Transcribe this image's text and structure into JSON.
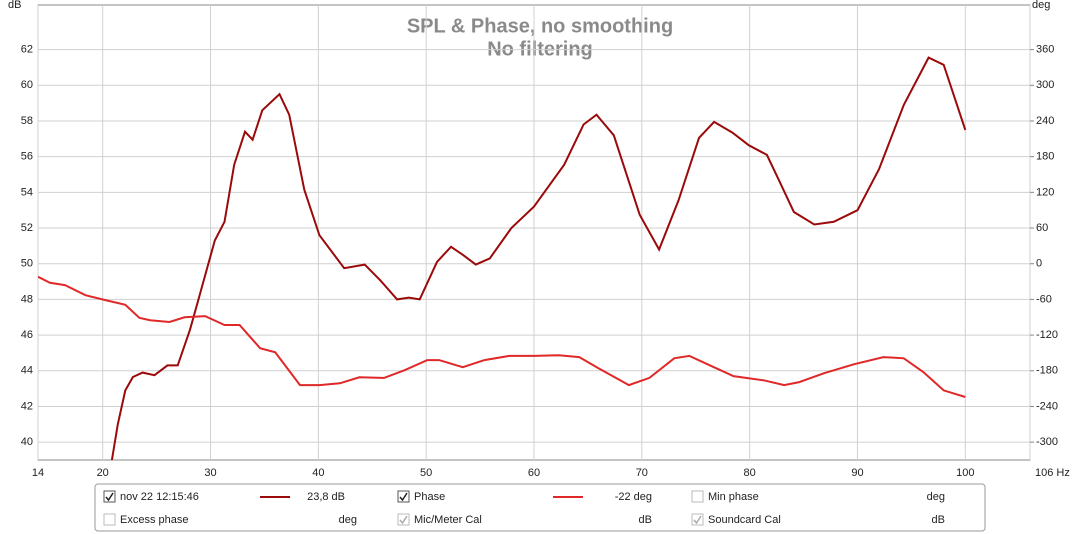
{
  "chart_data": {
    "type": "line",
    "title": "SPL & Phase, no smoothing",
    "subtitle": "No filtering",
    "y_label": "dB",
    "y2_label": "deg",
    "xlim": [
      14,
      106
    ],
    "xticks": [
      14,
      20,
      30,
      40,
      50,
      60,
      70,
      80,
      90,
      100,
      {
        "value": 106,
        "label": "106 Hz"
      }
    ],
    "ylim": [
      39,
      64.5
    ],
    "yticks": [
      40,
      42,
      44,
      46,
      48,
      50,
      52,
      54,
      56,
      58,
      60,
      62
    ],
    "y2lim": [
      -330,
      435
    ],
    "y2ticks": [
      -300,
      -240,
      -180,
      -120,
      -60,
      0,
      60,
      120,
      180,
      240,
      300,
      360
    ],
    "grid": true,
    "series": [
      {
        "name": "nov 22 12:15:46",
        "color": "#9b0a0a",
        "axis": "y",
        "readout": "23,8 dB",
        "checked": true,
        "x": [
          20.85,
          21.4,
          22.1,
          22.8,
          23.7,
          24.8,
          26.0,
          26.96,
          28.1,
          29.0,
          30.4,
          31.3,
          32.2,
          33.2,
          33.9,
          34.8,
          36.4,
          37.3,
          38.7,
          40.1,
          42.4,
          44.3,
          45.7,
          47.3,
          48.4,
          49.4,
          51.0,
          52.3,
          53.4,
          54.6,
          55.9,
          57.9,
          60.0,
          62.8,
          64.6,
          65.8,
          67.4,
          69.8,
          71.6,
          73.4,
          75.3,
          76.7,
          78.4,
          79.9,
          81.6,
          82.7,
          84.1,
          86.0,
          87.8,
          90.0,
          92.0,
          94.3,
          96.6,
          98.0,
          100.0
        ],
        "values": [
          39.0,
          41.0,
          42.9,
          43.65,
          43.9,
          43.75,
          44.3,
          44.3,
          46.3,
          48.25,
          51.3,
          52.35,
          55.55,
          57.4,
          56.95,
          58.6,
          59.5,
          58.35,
          54.15,
          51.6,
          49.75,
          49.95,
          49.1,
          48.0,
          48.1,
          48.0,
          50.1,
          50.95,
          50.5,
          49.95,
          50.3,
          52.0,
          53.2,
          55.55,
          57.8,
          58.35,
          57.2,
          52.75,
          50.8,
          53.55,
          57.05,
          57.95,
          57.35,
          56.65,
          56.1,
          54.7,
          52.9,
          52.2,
          52.35,
          53.0,
          55.3,
          58.9,
          61.55,
          61.15,
          57.5
        ]
      },
      {
        "name": "Phase",
        "color": "#e02828",
        "axis": "y2",
        "readout": "-22 deg",
        "checked": true,
        "x": [
          14,
          15.1,
          16.5,
          18.4,
          20.2,
          22.1,
          23.4,
          24.4,
          26.2,
          27.6,
          29.5,
          31.3,
          32.7,
          34.6,
          36.0,
          38.3,
          40.1,
          42.0,
          43.8,
          46.1,
          48.0,
          50.1,
          51.2,
          53.4,
          55.4,
          57.7,
          60.0,
          62.3,
          64.2,
          66.0,
          68.8,
          70.7,
          73.0,
          74.4,
          76.2,
          78.5,
          81.3,
          83.2,
          84.6,
          86.9,
          89.7,
          92.4,
          94.3,
          96.1,
          98.0,
          100
        ],
        "values": [
          -22,
          -32,
          -36,
          -53,
          -61,
          -69,
          -91,
          -95,
          -98,
          -90,
          -88,
          -103,
          -103,
          -142,
          -149,
          -204,
          -204,
          -201,
          -191,
          -192,
          -179,
          -162,
          -162,
          -174,
          -162,
          -155,
          -155,
          -154,
          -157,
          -176,
          -204,
          -192,
          -159,
          -155,
          -170,
          -189,
          -196,
          -204,
          -199,
          -184,
          -169,
          -157,
          -159,
          -182,
          -213,
          -224
        ]
      }
    ],
    "other_legend_items": [
      {
        "name": "Min phase",
        "unit": "deg",
        "checked": false
      },
      {
        "name": "Excess phase",
        "unit": "deg",
        "checked": false
      },
      {
        "name": "Mic/Meter Cal",
        "unit": "dB",
        "checked": true
      },
      {
        "name": "Soundcard Cal",
        "unit": "dB",
        "checked": true
      }
    ]
  }
}
